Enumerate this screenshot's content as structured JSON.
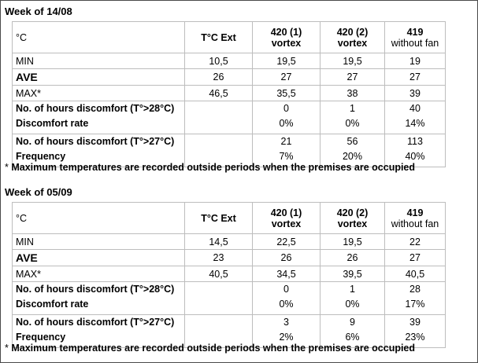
{
  "footnote_star": "*",
  "footnote_text": "Maximum temperatures are recorded outside periods when the premises are occupied",
  "weeks": [
    {
      "title": "Week of 14/08",
      "headers": {
        "unit": "°C",
        "ext": "T°C Ext",
        "c1_line1": "420 (1)",
        "c1_line2": "vortex",
        "c2_line1": "420 (2)",
        "c2_line2": "vortex",
        "c3_line1": "419",
        "c3_line2": "without fan"
      },
      "rows": {
        "min": {
          "label": "MIN",
          "ext": "10,5",
          "c1": "19,5",
          "c2": "19,5",
          "c3": "19"
        },
        "ave": {
          "label": "AVE",
          "ext": "26",
          "c1": "27",
          "c2": "27",
          "c3": "27"
        },
        "max": {
          "label": "MAX*",
          "ext": "46,5",
          "c1": "35,5",
          "c2": "38",
          "c3": "39"
        }
      },
      "discomfort28": {
        "label1": "No. of hours discomfort (T°>28°C)",
        "label2": "Discomfort rate",
        "hours": [
          "0",
          "1",
          "40"
        ],
        "rate": [
          "0%",
          "0%",
          "14%"
        ]
      },
      "discomfort27": {
        "label1": "No. of hours discomfort (T°>27°C)",
        "label2": "Frequency",
        "hours": [
          "21",
          "56",
          "113"
        ],
        "rate": [
          "7%",
          "20%",
          "40%"
        ]
      }
    },
    {
      "title": "Week of 05/09",
      "headers": {
        "unit": "°C",
        "ext": "T°C Ext",
        "c1_line1": "420 (1)",
        "c1_line2": "vortex",
        "c2_line1": "420 (2)",
        "c2_line2": "vortex",
        "c3_line1": "419",
        "c3_line2": "without fan"
      },
      "rows": {
        "min": {
          "label": "MIN",
          "ext": "14,5",
          "c1": "22,5",
          "c2": "19,5",
          "c3": "22"
        },
        "ave": {
          "label": "AVE",
          "ext": "23",
          "c1": "26",
          "c2": "26",
          "c3": "27"
        },
        "max": {
          "label": "MAX*",
          "ext": "40,5",
          "c1": "34,5",
          "c2": "39,5",
          "c3": "40,5"
        }
      },
      "discomfort28": {
        "label1": "No. of hours discomfort (T°>28°C)",
        "label2": "Discomfort rate",
        "hours": [
          "0",
          "1",
          "28"
        ],
        "rate": [
          "0%",
          "0%",
          "17%"
        ]
      },
      "discomfort27": {
        "label1": "No. of hours discomfort (T°>27°C)",
        "label2": "Frequency",
        "hours": [
          "3",
          "9",
          "39"
        ],
        "rate": [
          "2%",
          "6%",
          "23%"
        ]
      }
    }
  ]
}
